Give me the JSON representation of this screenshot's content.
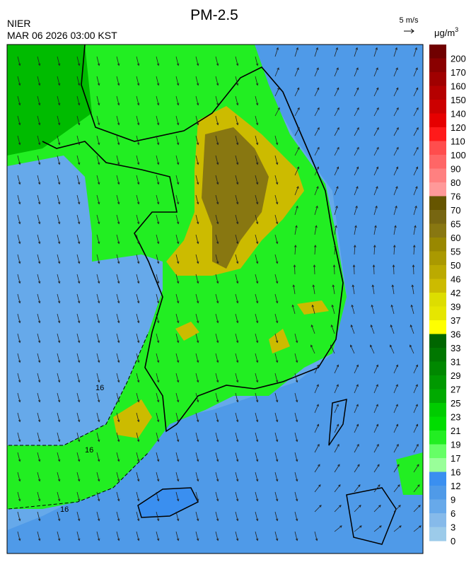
{
  "header": {
    "title": "PM-2.5",
    "agency": "NIER",
    "datetime": "MAR 06 2026 03:00 KST"
  },
  "wind_legend": {
    "label": "5 m/s"
  },
  "colorbar": {
    "unit": "μg/m",
    "unit_superscript": "3",
    "levels": [
      "200",
      "170",
      "160",
      "150",
      "140",
      "120",
      "110",
      "100",
      "90",
      "80",
      "76",
      "70",
      "65",
      "60",
      "55",
      "50",
      "46",
      "42",
      "39",
      "37",
      "36",
      "33",
      "31",
      "29",
      "27",
      "25",
      "23",
      "21",
      "19",
      "17",
      "16",
      "12",
      "9",
      "6",
      "3",
      "0"
    ],
    "colors": [
      "#700000",
      "#8a0000",
      "#a00000",
      "#b50000",
      "#cc0000",
      "#e60000",
      "#ff1a1a",
      "#ff4d4d",
      "#ff6666",
      "#ff8080",
      "#ff9999",
      "#665500",
      "#776611",
      "#887711",
      "#998800",
      "#aa9900",
      "#bbaa00",
      "#ccbb00",
      "#dddd00",
      "#e6e600",
      "#ffff00",
      "#006600",
      "#007700",
      "#008800",
      "#009900",
      "#00aa00",
      "#00cc00",
      "#00dd00",
      "#22ee22",
      "#66ff66",
      "#99ff99",
      "#3a8ff0",
      "#4f9ae8",
      "#67a9ea",
      "#86baea",
      "#9ccbea"
    ]
  },
  "map": {
    "contour_labels": [
      "16",
      "16",
      "16"
    ]
  }
}
